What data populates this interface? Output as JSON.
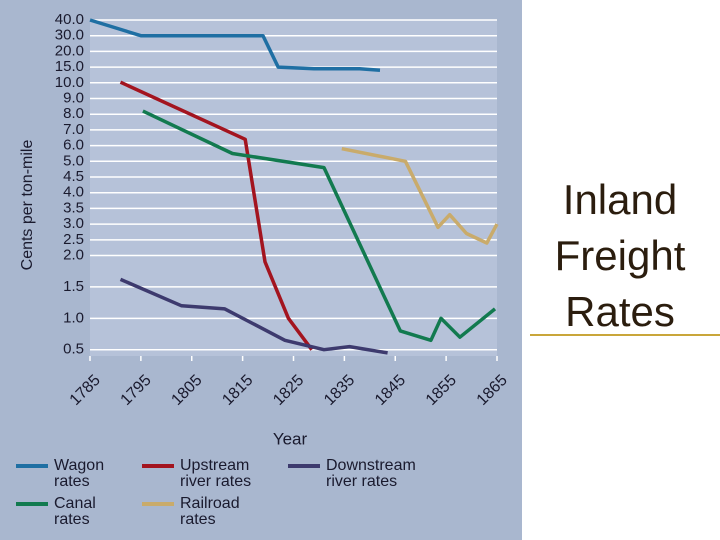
{
  "chart_data": {
    "type": "line",
    "title": "Inland Freight Rates",
    "x_label": "Year",
    "y_label": "Cents per ton-mile",
    "xlim": [
      1785,
      1865
    ],
    "xticks": [
      1785,
      1795,
      1805,
      1815,
      1825,
      1835,
      1845,
      1855,
      1865
    ],
    "ylim": [
      0.4,
      40
    ],
    "yticks": [
      0.5,
      {
        "value": 1,
        "label": "1.0"
      },
      1.5,
      {
        "value": 2,
        "label": "2.0"
      },
      2.5,
      {
        "value": 3,
        "label": "3.0"
      },
      3.5,
      {
        "value": 4,
        "label": "4.0"
      },
      4.5,
      {
        "value": 5,
        "label": "5.0"
      },
      {
        "value": 6,
        "label": "6.0"
      },
      {
        "value": 7,
        "label": "7.0"
      },
      {
        "value": 8,
        "label": "8.0"
      },
      {
        "value": 9,
        "label": "9.0"
      },
      {
        "value": 10,
        "label": "10.0"
      },
      {
        "value": 15,
        "label": "15.0"
      },
      {
        "value": 20,
        "label": "20.0"
      },
      {
        "value": 30,
        "label": "30.0"
      },
      {
        "value": 40,
        "label": "40.0"
      }
    ],
    "grid": true,
    "series": [
      {
        "name": "Wagon rates",
        "color": "#1f6fa3",
        "x": [
          1785,
          1795,
          1807,
          1819,
          1822,
          1829,
          1838,
          1842
        ],
        "values": [
          40,
          30,
          30,
          30,
          15,
          14.5,
          14.5,
          14
        ]
      },
      {
        "name": "Upstream river rates",
        "color": "#a3141f",
        "x": [
          1791,
          1815.5,
          1819.4,
          1824,
          1828.6
        ],
        "values": [
          10.2,
          6.4,
          1.9,
          1.0,
          0.5
        ]
      },
      {
        "name": "Downstream river rates",
        "color": "#3d3a6e",
        "x": [
          1791,
          1803,
          1811.5,
          1823.3,
          1831,
          1836,
          1843.5
        ],
        "values": [
          1.62,
          1.2,
          1.15,
          0.65,
          0.5,
          0.55,
          0.45
        ]
      },
      {
        "name": "Canal rates",
        "color": "#127a4f",
        "x": [
          1795.4,
          1813,
          1831,
          1846,
          1852,
          1854,
          1857.7,
          1864.6
        ],
        "values": [
          8.2,
          5.5,
          4.8,
          0.8,
          0.65,
          1.0,
          0.7,
          1.15
        ]
      },
      {
        "name": "Railroad rates",
        "color": "#c9ab6b",
        "x": [
          1834.5,
          1847,
          1853.4,
          1855.7,
          1859,
          1863,
          1865
        ],
        "values": [
          5.8,
          5.0,
          2.9,
          3.3,
          2.7,
          2.4,
          3.0
        ]
      }
    ]
  }
}
